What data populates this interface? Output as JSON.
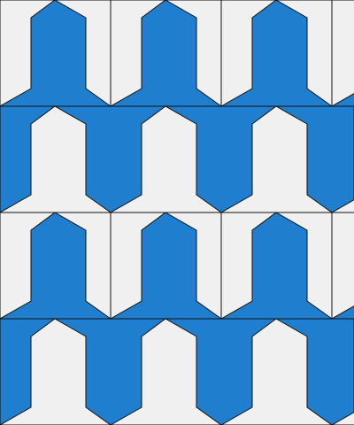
{
  "pattern": {
    "colors": {
      "background": "#f0f0f0",
      "fill": "#1f7fce",
      "stroke": "#111111"
    },
    "columns": 4,
    "rows": 4,
    "row_types": [
      "up",
      "down",
      "up",
      "down"
    ]
  }
}
